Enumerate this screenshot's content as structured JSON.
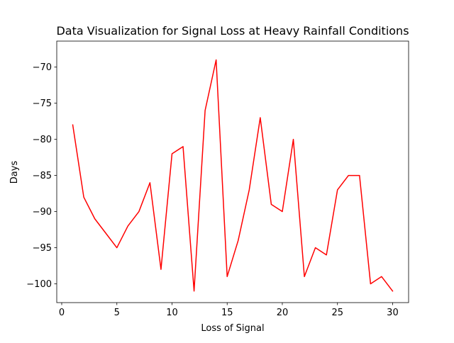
{
  "chart_data": {
    "type": "line",
    "title": "Data Visualization for Signal Loss at Heavy Rainfall Conditions",
    "xlabel": "Loss of Signal",
    "ylabel": "Days",
    "xlim": [
      -0.45,
      31.45
    ],
    "ylim": [
      -102.6,
      -66.4
    ],
    "xticks": [
      0,
      5,
      10,
      15,
      20,
      25,
      30
    ],
    "yticks": [
      -100,
      -95,
      -90,
      -85,
      -80,
      -75,
      -70
    ],
    "xtick_labels": [
      "0",
      "5",
      "10",
      "15",
      "20",
      "25",
      "30"
    ],
    "ytick_labels": [
      "−100",
      "−95",
      "−90",
      "−85",
      "−80",
      "−75",
      "−70"
    ],
    "grid": false,
    "legend": false,
    "series": [
      {
        "color": "#ff0000",
        "x": [
          1,
          2,
          3,
          4,
          5,
          6,
          7,
          8,
          9,
          10,
          11,
          12,
          13,
          14,
          15,
          16,
          17,
          18,
          19,
          20,
          21,
          22,
          23,
          24,
          25,
          26,
          27,
          28,
          29,
          30
        ],
        "y": [
          -78,
          -88,
          -91,
          -93,
          -95,
          -92,
          -90,
          -86,
          -98,
          -82,
          -81,
          -101,
          -76,
          -69,
          -99,
          -94,
          -87,
          -77,
          -89,
          -90,
          -80,
          -99,
          -95,
          -96,
          -87,
          -85,
          -85,
          -100,
          -99,
          -101
        ]
      }
    ]
  }
}
